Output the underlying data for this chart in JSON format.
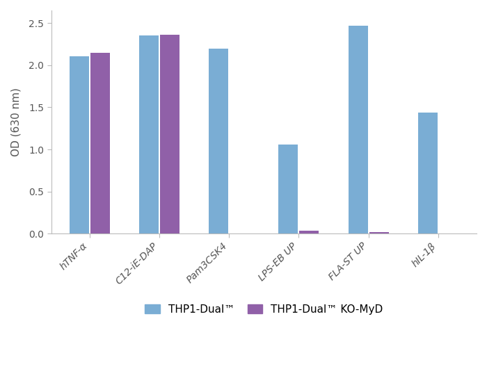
{
  "categories": [
    "hTNF-α",
    "C12-iE-DAP",
    "Pam3CSK4",
    "LPS-EB UP",
    "FLA-ST UP",
    "hIL-1β"
  ],
  "thp1_dual": [
    2.11,
    2.35,
    2.2,
    1.06,
    2.47,
    1.44
  ],
  "thp1_ko_myd": [
    2.15,
    2.36,
    0.0,
    0.035,
    0.018,
    0.0
  ],
  "color_dual": "#7aadd4",
  "color_ko": "#9060a8",
  "ylabel": "OD (630 nm)",
  "ylim": [
    0,
    2.65
  ],
  "yticks": [
    0.0,
    0.5,
    1.0,
    1.5,
    2.0,
    2.5
  ],
  "ytick_labels": [
    "0.0",
    "0.5",
    "1.0",
    "1.5",
    "2.0",
    "2.5"
  ],
  "legend_dual": "THP1-Dual™",
  "legend_ko": "THP1-Dual™ KO-MyD",
  "bar_width": 0.28,
  "spine_color": "#bbbbbb",
  "tick_label_color": "#555555",
  "ylabel_color": "#555555",
  "figsize": [
    7.0,
    5.44
  ],
  "dpi": 100
}
